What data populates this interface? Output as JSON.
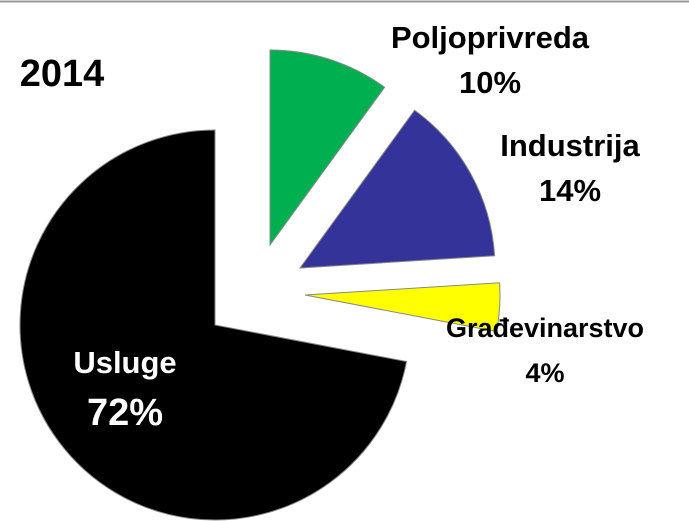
{
  "chart_data": {
    "type": "pie",
    "title": "2014",
    "categories": [
      "Poljoprivreda",
      "Industrija",
      "Građevinarstvo",
      "Usluge"
    ],
    "values": [
      10,
      14,
      4,
      72
    ],
    "value_labels": [
      "10%",
      "14%",
      "4%",
      "72%"
    ],
    "colors": [
      "#00b050",
      "#333399",
      "#ffff00",
      "#000000"
    ],
    "label_colors": [
      "#000000",
      "#000000",
      "#000000",
      "#ffffff"
    ]
  }
}
